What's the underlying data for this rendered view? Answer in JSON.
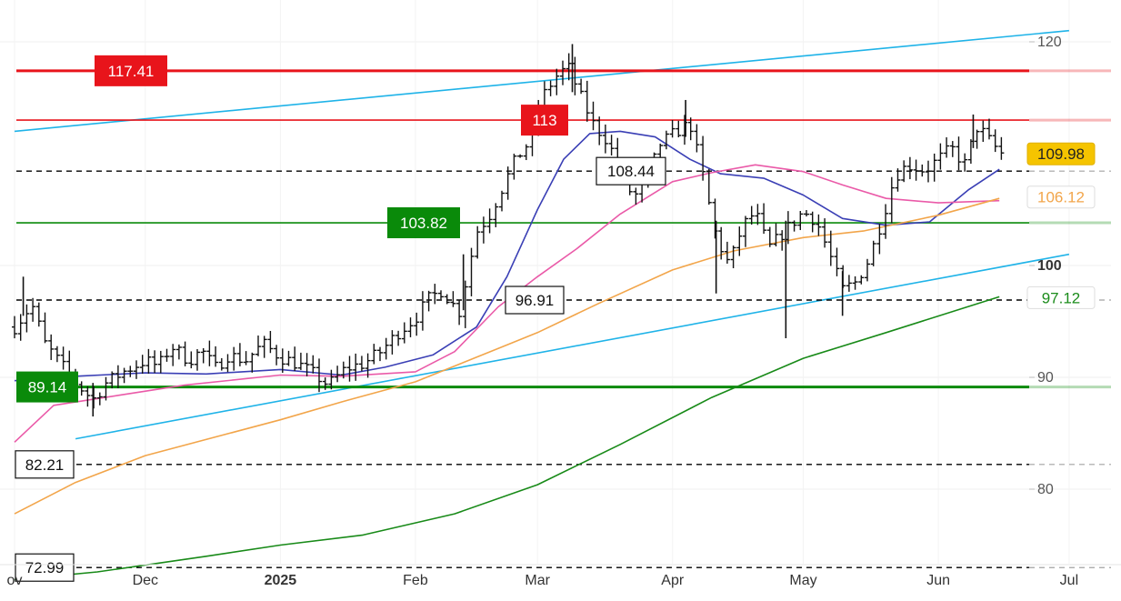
{
  "chart_data": {
    "type": "ohlc",
    "y_ticks": [
      {
        "value": 120,
        "label": "120",
        "bold": false
      },
      {
        "value": 100,
        "label": "100",
        "bold": true
      },
      {
        "value": 90,
        "label": "90",
        "bold": false
      },
      {
        "value": 80,
        "label": "80",
        "bold": false
      }
    ],
    "x_ticks": [
      {
        "date": "2024-11-01",
        "label": "ov",
        "bold": false
      },
      {
        "date": "2024-12-01",
        "label": "Dec",
        "bold": false
      },
      {
        "date": "2025-01-01",
        "label": "2025",
        "bold": true
      },
      {
        "date": "2025-02-01",
        "label": "Feb",
        "bold": false
      },
      {
        "date": "2025-03-01",
        "label": "Mar",
        "bold": false
      },
      {
        "date": "2025-04-01",
        "label": "Apr",
        "bold": false
      },
      {
        "date": "2025-05-01",
        "label": "May",
        "bold": false
      },
      {
        "date": "2025-06-01",
        "label": "Jun",
        "bold": false
      },
      {
        "date": "2025-07-01",
        "label": "Jul",
        "bold": false
      }
    ],
    "y_range": [
      70,
      122
    ],
    "x_range": [
      "2024-11-01",
      "2025-07-01"
    ],
    "levels": [
      {
        "value": 117.41,
        "label": "117.41",
        "style": "solid",
        "color": "#e8141b",
        "box": "fill",
        "pos": "left"
      },
      {
        "value": 113,
        "label": "113",
        "style": "solid",
        "color": "#e8141b",
        "box": "fill",
        "pos": "mid"
      },
      {
        "value": 108.44,
        "label": "108.44",
        "style": "dashed",
        "color": "#000000",
        "box": "outline",
        "pos": "mid"
      },
      {
        "value": 103.82,
        "label": "103.82",
        "style": "solid",
        "color": "#0a8a0a",
        "box": "fill",
        "pos": "mid"
      },
      {
        "value": 96.91,
        "label": "96.91",
        "style": "dashed",
        "color": "#000000",
        "box": "outline",
        "pos": "mid"
      },
      {
        "value": 89.14,
        "label": "89.14",
        "style": "solid",
        "color": "#0a8a0a",
        "box": "fill",
        "pos": "left"
      },
      {
        "value": 82.21,
        "label": "82.21",
        "style": "dashed",
        "color": "#000000",
        "box": "outline",
        "pos": "left"
      },
      {
        "value": 72.99,
        "label": "72.99",
        "style": "dashed",
        "color": "#000000",
        "box": "outline",
        "pos": "left"
      }
    ],
    "price_tags": [
      {
        "value": 109.98,
        "label": "109.98",
        "color": "#f5c400"
      },
      {
        "value": 106.12,
        "label": "106.12",
        "color": "#f2a54a"
      },
      {
        "value": 97.12,
        "label": "97.12",
        "color": "#1c8c1c"
      }
    ],
    "trendlines": [
      {
        "color": "#1fb3e8",
        "from": {
          "date": "2024-11-01",
          "value": 112.0
        },
        "to": {
          "date": "2025-07-01",
          "value": 121.0
        }
      },
      {
        "color": "#1fb3e8",
        "from": {
          "date": "2024-11-15",
          "value": 84.5
        },
        "to": {
          "date": "2025-07-01",
          "value": 101.0
        }
      }
    ],
    "moving_averages": [
      {
        "color": "#3a3fb5",
        "points": [
          [
            "2024-11-01",
            89.7
          ],
          [
            "2024-11-15",
            90.1
          ],
          [
            "2024-12-01",
            90.4
          ],
          [
            "2024-12-15",
            90.3
          ],
          [
            "2025-01-01",
            90.7
          ],
          [
            "2025-01-15",
            90.2
          ],
          [
            "2025-01-25",
            90.9
          ],
          [
            "2025-02-05",
            92.0
          ],
          [
            "2025-02-15",
            94.5
          ],
          [
            "2025-02-22",
            99.0
          ],
          [
            "2025-03-01",
            105.0
          ],
          [
            "2025-03-07",
            109.5
          ],
          [
            "2025-03-13",
            111.8
          ],
          [
            "2025-03-20",
            112.0
          ],
          [
            "2025-03-28",
            111.5
          ],
          [
            "2025-04-05",
            109.5
          ],
          [
            "2025-04-12",
            108.2
          ],
          [
            "2025-04-22",
            107.8
          ],
          [
            "2025-05-01",
            106.3
          ],
          [
            "2025-05-10",
            104.2
          ],
          [
            "2025-05-20",
            103.6
          ],
          [
            "2025-05-30",
            103.9
          ],
          [
            "2025-06-08",
            106.8
          ],
          [
            "2025-06-15",
            108.6
          ]
        ]
      },
      {
        "color": "#ea5aa8",
        "points": [
          [
            "2024-11-01",
            84.2
          ],
          [
            "2024-11-10",
            87.5
          ],
          [
            "2024-11-25",
            88.4
          ],
          [
            "2024-12-10",
            89.3
          ],
          [
            "2025-01-01",
            90.2
          ],
          [
            "2025-01-15",
            90.1
          ],
          [
            "2025-02-01",
            90.5
          ],
          [
            "2025-02-10",
            92.3
          ],
          [
            "2025-02-20",
            96.3
          ],
          [
            "2025-03-01",
            99.0
          ],
          [
            "2025-03-10",
            101.5
          ],
          [
            "2025-03-20",
            104.6
          ],
          [
            "2025-04-01",
            107.5
          ],
          [
            "2025-04-10",
            108.3
          ],
          [
            "2025-04-20",
            109.0
          ],
          [
            "2025-05-01",
            108.4
          ],
          [
            "2025-05-10",
            107.2
          ],
          [
            "2025-05-20",
            106.0
          ],
          [
            "2025-06-01",
            105.6
          ],
          [
            "2025-06-15",
            105.8
          ]
        ]
      },
      {
        "color": "#f2a54a",
        "points": [
          [
            "2024-11-01",
            77.8
          ],
          [
            "2024-11-15",
            80.6
          ],
          [
            "2024-12-01",
            83.0
          ],
          [
            "2025-01-01",
            86.2
          ],
          [
            "2025-01-15",
            87.8
          ],
          [
            "2025-02-01",
            89.6
          ],
          [
            "2025-02-15",
            91.8
          ],
          [
            "2025-03-01",
            94.0
          ],
          [
            "2025-03-15",
            96.6
          ],
          [
            "2025-04-01",
            99.6
          ],
          [
            "2025-04-15",
            101.3
          ],
          [
            "2025-05-01",
            102.5
          ],
          [
            "2025-05-15",
            103.1
          ],
          [
            "2025-06-01",
            104.5
          ],
          [
            "2025-06-15",
            106.0
          ]
        ]
      },
      {
        "color": "#188a18",
        "points": [
          [
            "2024-11-01",
            71.9
          ],
          [
            "2024-11-20",
            72.6
          ],
          [
            "2024-12-15",
            74.0
          ],
          [
            "2025-01-01",
            75.0
          ],
          [
            "2025-01-20",
            75.9
          ],
          [
            "2025-02-10",
            77.8
          ],
          [
            "2025-03-01",
            80.4
          ],
          [
            "2025-03-20",
            84.0
          ],
          [
            "2025-04-10",
            88.2
          ],
          [
            "2025-05-01",
            91.7
          ],
          [
            "2025-05-20",
            94.0
          ],
          [
            "2025-06-15",
            97.2
          ]
        ]
      }
    ],
    "ohlc_path": [
      [
        "2024-11-01",
        94.5
      ],
      [
        "2024-11-05",
        96.5
      ],
      [
        "2024-11-08",
        93.0
      ],
      [
        "2024-11-12",
        91.0
      ],
      [
        "2024-11-15",
        89.5
      ],
      [
        "2024-11-19",
        88.0
      ],
      [
        "2024-11-22",
        89.5
      ],
      [
        "2024-11-26",
        90.5
      ],
      [
        "2024-12-01",
        91.5
      ],
      [
        "2024-12-04",
        91.0
      ],
      [
        "2024-12-07",
        92.8
      ],
      [
        "2024-12-11",
        91.5
      ],
      [
        "2024-12-14",
        92.4
      ],
      [
        "2024-12-17",
        90.8
      ],
      [
        "2024-12-20",
        92.0
      ],
      [
        "2024-12-24",
        91.5
      ],
      [
        "2024-12-28",
        93.0
      ],
      [
        "2025-01-01",
        91.8
      ],
      [
        "2025-01-05",
        91.2
      ],
      [
        "2025-01-09",
        90.2
      ],
      [
        "2025-01-12",
        89.3
      ],
      [
        "2025-01-16",
        90.8
      ],
      [
        "2025-01-20",
        91.2
      ],
      [
        "2025-01-24",
        92.3
      ],
      [
        "2025-01-28",
        94.0
      ],
      [
        "2025-02-01",
        95.3
      ],
      [
        "2025-02-04",
        97.0
      ],
      [
        "2025-02-07",
        97.8
      ],
      [
        "2025-02-11",
        95.8
      ],
      [
        "2025-02-15",
        103.0
      ],
      [
        "2025-02-18",
        104.5
      ],
      [
        "2025-02-21",
        107.0
      ],
      [
        "2025-02-24",
        109.5
      ],
      [
        "2025-02-27",
        111.0
      ],
      [
        "2025-03-02",
        115.0
      ],
      [
        "2025-03-05",
        116.8
      ],
      [
        "2025-03-08",
        117.8
      ],
      [
        "2025-03-11",
        115.0
      ],
      [
        "2025-03-14",
        112.5
      ],
      [
        "2025-03-17",
        111.2
      ],
      [
        "2025-03-20",
        108.5
      ],
      [
        "2025-03-23",
        106.0
      ],
      [
        "2025-03-26",
        107.5
      ],
      [
        "2025-03-29",
        110.8
      ],
      [
        "2025-04-02",
        112.0
      ],
      [
        "2025-04-05",
        112.7
      ],
      [
        "2025-04-08",
        108.0
      ],
      [
        "2025-04-11",
        102.5
      ],
      [
        "2025-04-14",
        100.0
      ],
      [
        "2025-04-17",
        103.5
      ],
      [
        "2025-04-20",
        104.8
      ],
      [
        "2025-04-23",
        101.5
      ],
      [
        "2025-04-27",
        103.2
      ],
      [
        "2025-05-01",
        104.8
      ],
      [
        "2025-05-04",
        104.0
      ],
      [
        "2025-05-07",
        101.0
      ],
      [
        "2025-05-10",
        97.8
      ],
      [
        "2025-05-13",
        98.5
      ],
      [
        "2025-05-16",
        100.5
      ],
      [
        "2025-05-19",
        104.0
      ],
      [
        "2025-05-22",
        108.0
      ],
      [
        "2025-05-25",
        109.0
      ],
      [
        "2025-05-29",
        108.5
      ],
      [
        "2025-06-01",
        109.5
      ],
      [
        "2025-06-04",
        110.5
      ],
      [
        "2025-06-07",
        109.0
      ],
      [
        "2025-06-10",
        112.5
      ],
      [
        "2025-06-13",
        111.0
      ],
      [
        "2025-06-16",
        109.8
      ]
    ],
    "spikes": [
      {
        "date": "2024-11-03",
        "high": 99.0,
        "low": 95.5
      },
      {
        "date": "2024-11-19",
        "high": 89.5,
        "low": 86.5
      },
      {
        "date": "2025-02-12",
        "high": 101.0,
        "low": 96.0
      },
      {
        "date": "2025-03-09",
        "high": 119.8,
        "low": 115.5
      },
      {
        "date": "2025-04-04",
        "high": 114.8,
        "low": 111.5
      },
      {
        "date": "2025-04-11",
        "high": 104.0,
        "low": 97.5
      },
      {
        "date": "2025-04-27",
        "high": 104.0,
        "low": 93.5
      },
      {
        "date": "2025-05-10",
        "high": 99.5,
        "low": 95.5
      },
      {
        "date": "2025-06-09",
        "high": 113.5,
        "low": 110.5
      }
    ]
  }
}
